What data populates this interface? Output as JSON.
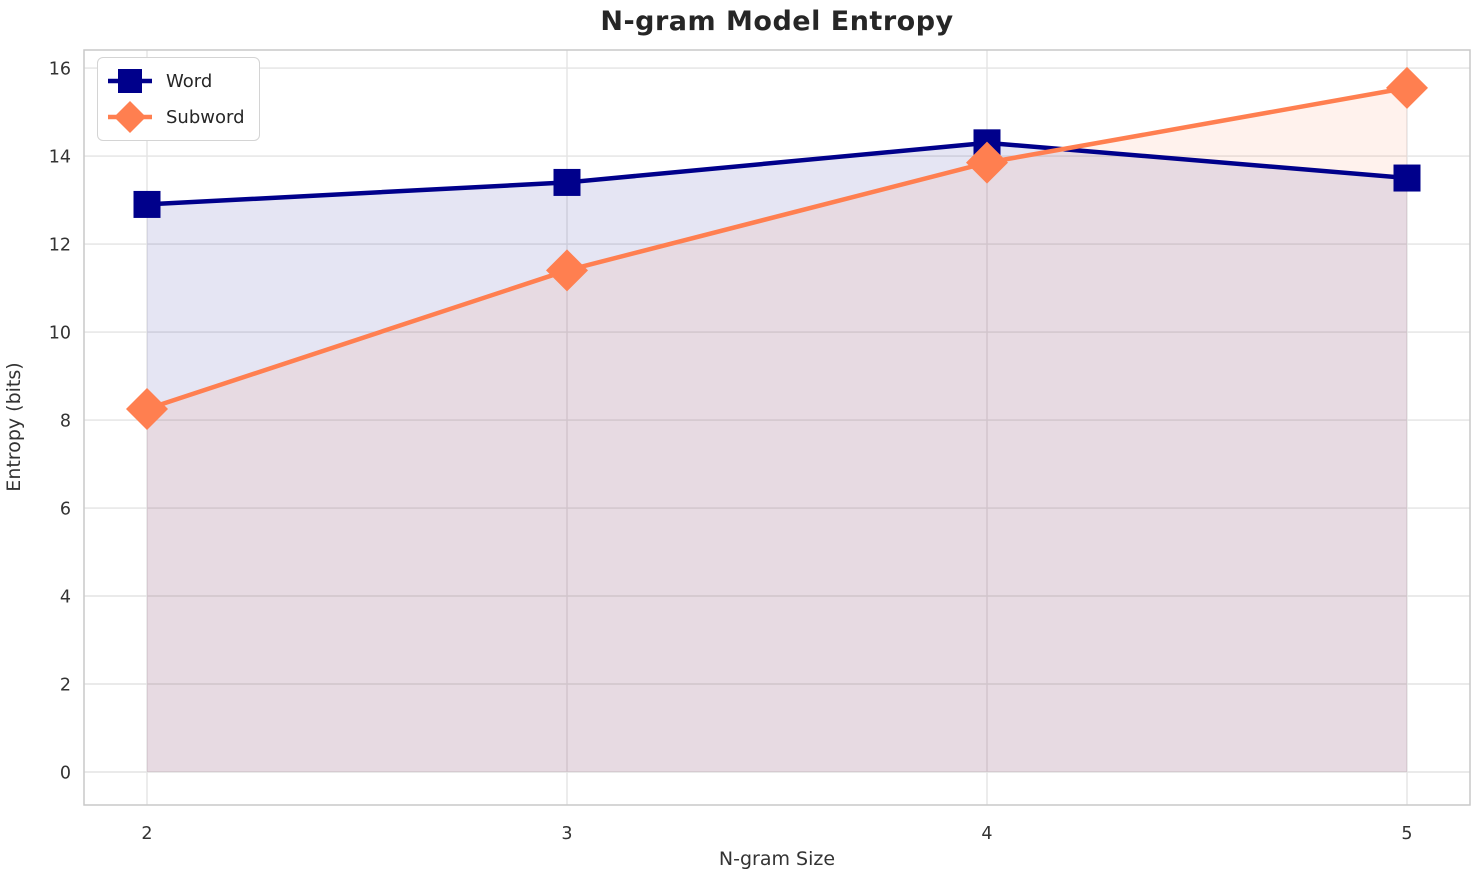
{
  "chart_data": {
    "type": "line",
    "title": "N-gram Model Entropy",
    "xlabel": "N-gram Size",
    "ylabel": "Entropy (bits)",
    "x": [
      2,
      3,
      4,
      5
    ],
    "series": [
      {
        "name": "Word",
        "values": [
          12.9,
          13.4,
          14.3,
          13.5
        ],
        "color": "#00008B",
        "marker": "square",
        "fill_opacity": 0.1
      },
      {
        "name": "Subword",
        "values": [
          8.25,
          11.4,
          13.85,
          15.55
        ],
        "color": "#FF7F50",
        "marker": "diamond",
        "fill_opacity": 0.1
      }
    ],
    "xticks": [
      2,
      3,
      4,
      5
    ],
    "yticks": [
      0,
      2,
      4,
      6,
      8,
      10,
      12,
      14,
      16
    ],
    "xlim": [
      1.85,
      5.15
    ],
    "ylim": [
      -0.75,
      16.41
    ],
    "fill_to_zero": true,
    "grid": true,
    "legend_position": "upper-left"
  },
  "style": {
    "grid_color": "#e4e4e4",
    "spine_color": "#c9c9c9",
    "text_color": "#333333",
    "title_color": "#262626",
    "background": "#ffffff",
    "line_width": 4.5
  }
}
